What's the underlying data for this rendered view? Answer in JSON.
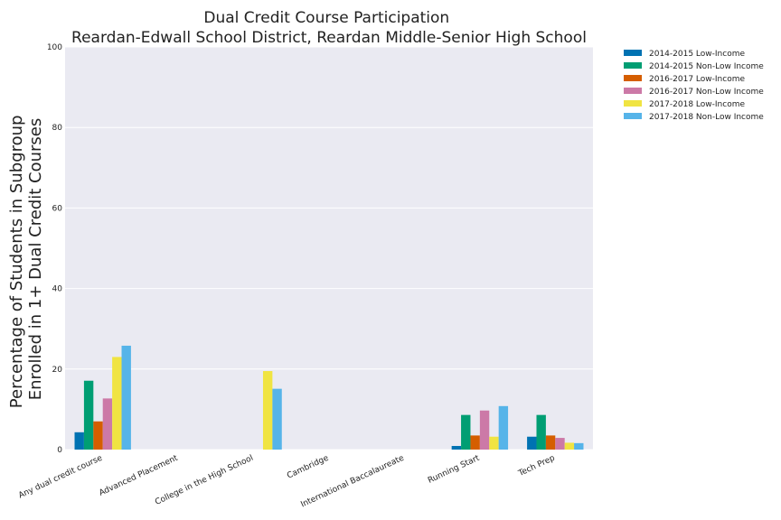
{
  "chart_data": {
    "type": "bar",
    "title": [
      "Dual Credit Course Participation",
      "Reardan-Edwall School District, Reardan Middle-Senior High School"
    ],
    "xlabel": "",
    "ylabel": [
      "Percentage of Students in Subgroup",
      "Enrolled in 1+ Dual Credit Courses"
    ],
    "ylim": [
      0,
      100
    ],
    "yticks": [
      "0",
      "20",
      "40",
      "60",
      "80",
      "100"
    ],
    "grid": true,
    "legend_position": "outside-right-top",
    "categories": [
      "Any dual credit course",
      "Advanced Placement",
      "College in the High School",
      "Cambridge",
      "International Baccalaureate",
      "Running Start",
      "Tech Prep"
    ],
    "series": [
      {
        "name": "2014-2015 Low-Income",
        "color": "#0072b2",
        "values": [
          4.3,
          null,
          null,
          null,
          null,
          0.9,
          3.2
        ]
      },
      {
        "name": "2014-2015 Non-Low Income",
        "color": "#009e73",
        "values": [
          17.1,
          null,
          null,
          null,
          null,
          8.6,
          8.6
        ]
      },
      {
        "name": "2016-2017 Low-Income",
        "color": "#d55e00",
        "values": [
          7.0,
          null,
          null,
          null,
          null,
          3.5,
          3.5
        ]
      },
      {
        "name": "2016-2017 Non-Low Income",
        "color": "#cc79a7",
        "values": [
          12.7,
          null,
          null,
          null,
          null,
          9.7,
          2.9
        ]
      },
      {
        "name": "2017-2018 Low-Income",
        "color": "#f0e442",
        "values": [
          23.0,
          null,
          19.5,
          null,
          null,
          3.2,
          1.7
        ]
      },
      {
        "name": "2017-2018 Non-Low Income",
        "color": "#56b4e9",
        "values": [
          25.8,
          null,
          15.1,
          null,
          null,
          10.8,
          1.6
        ]
      }
    ]
  }
}
